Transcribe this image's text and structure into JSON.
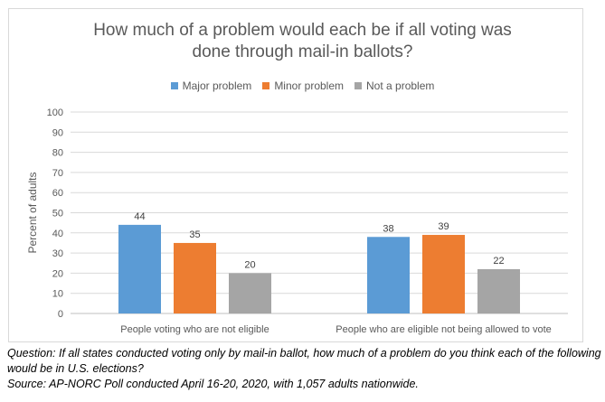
{
  "chart_data": {
    "type": "bar",
    "title": "How much of a problem would each be if all voting was\ndone through mail-in ballots?",
    "ylabel": "Percent of adults",
    "xlabel": "",
    "ylim": [
      0,
      100
    ],
    "yticks": [
      0,
      10,
      20,
      30,
      40,
      50,
      60,
      70,
      80,
      90,
      100
    ],
    "grid": true,
    "legend_position": "top",
    "categories": [
      "People voting who are not eligible",
      "People who are eligible not being allowed to vote"
    ],
    "series": [
      {
        "name": "Major problem",
        "color": "#5b9bd5",
        "values": [
          44,
          38
        ]
      },
      {
        "name": "Minor problem",
        "color": "#ed7d31",
        "values": [
          35,
          39
        ]
      },
      {
        "name": "Not a problem",
        "color": "#a5a5a5",
        "values": [
          20,
          22
        ]
      }
    ]
  },
  "caption": {
    "question": "Question: If all states conducted voting only by mail-in ballot, how much of a problem do you think each of the following would be in U.S. elections?",
    "source": "Source: AP-NORC Poll conducted April 16-20, 2020, with 1,057 adults nationwide."
  }
}
